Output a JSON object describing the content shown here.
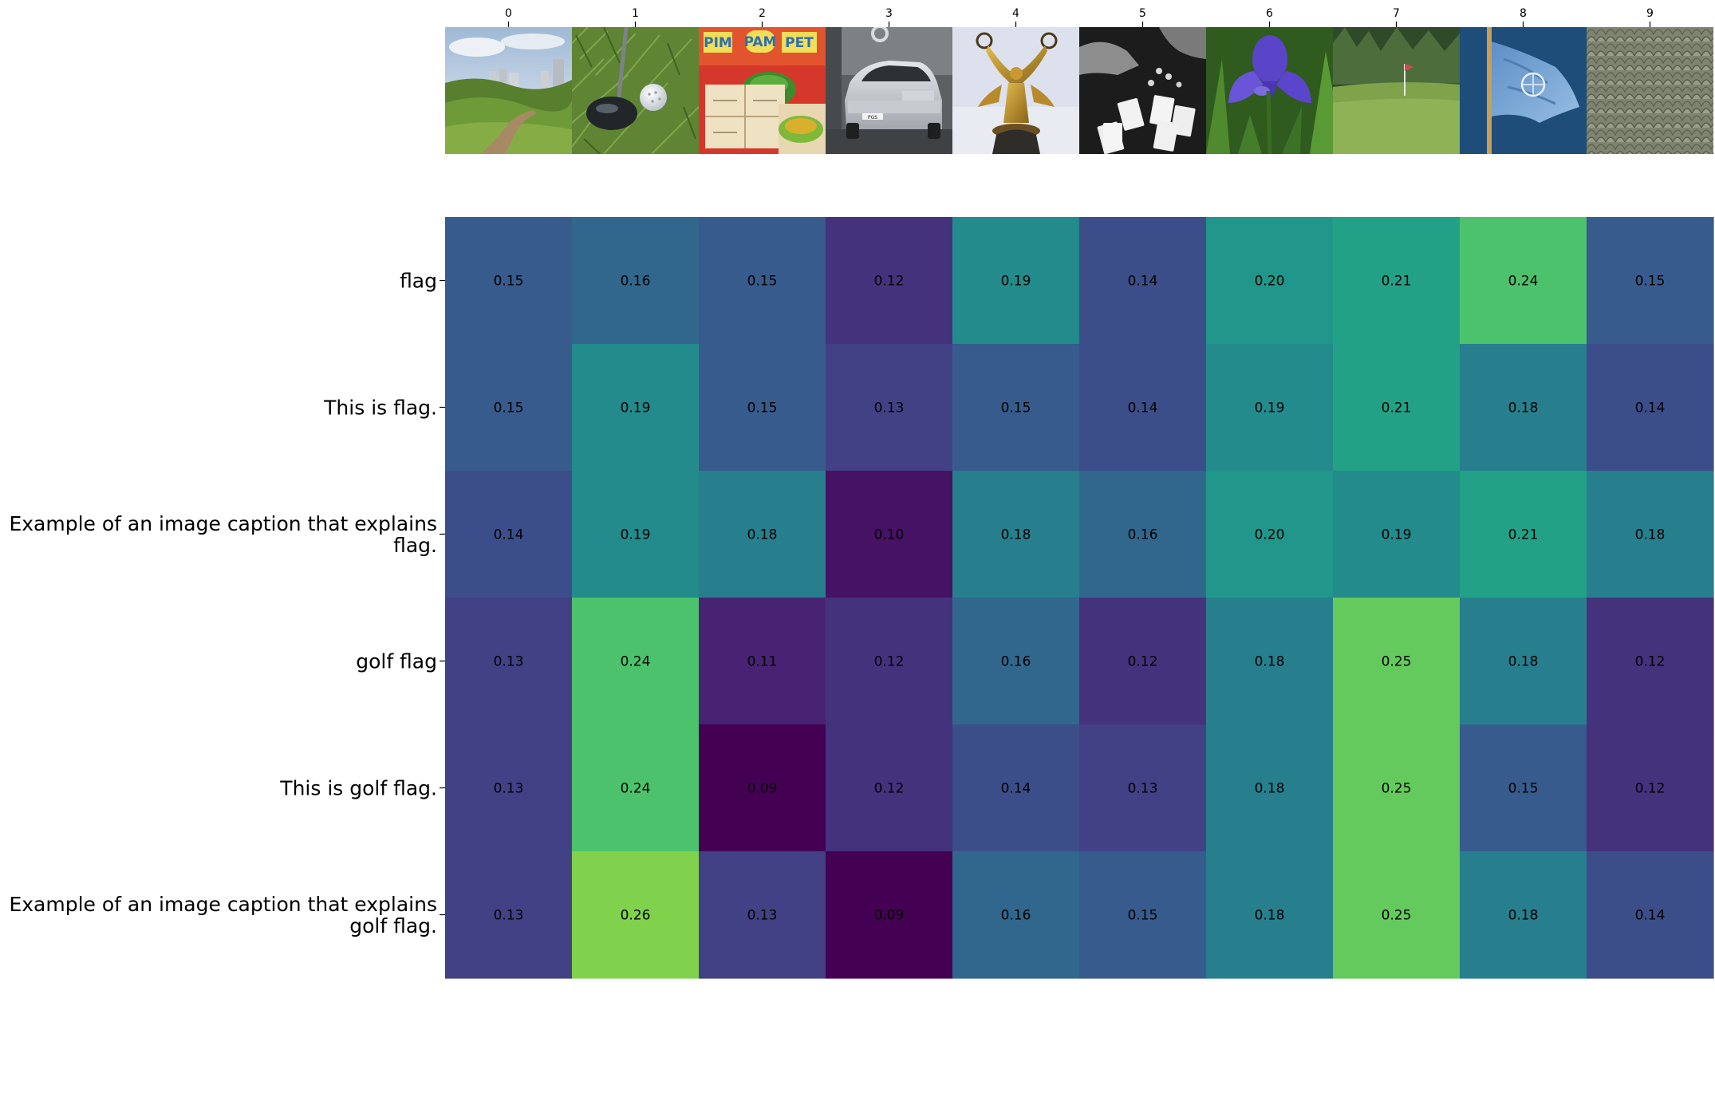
{
  "chart_data": {
    "type": "heatmap",
    "title": "",
    "xlabel": "",
    "ylabel": "",
    "x_tick_labels": [
      "0",
      "1",
      "2",
      "3",
      "4",
      "5",
      "6",
      "7",
      "8",
      "9"
    ],
    "image_thumbnails": [
      "landscape-with-path-and-city-buildings",
      "golf-driver-and-golf-ball-on-grass",
      "pim-pam-pet-board-game",
      "silver-hatchback-car",
      "golden-winged-statue",
      "hands-with-playing-cards-black-and-white",
      "purple-iris-flower",
      "golf-green-with-flag",
      "light-blue-flag-on-pole",
      "stone-shingle-roof"
    ],
    "rows": [
      [
        "flag"
      ],
      [
        "This is flag."
      ],
      [
        "Example of an image caption that explains",
        "flag."
      ],
      [
        "golf flag"
      ],
      [
        "This is golf flag."
      ],
      [
        "Example of an image caption that explains",
        "golf flag."
      ]
    ],
    "values": [
      [
        "0.15",
        "0.16",
        "0.15",
        "0.12",
        "0.19",
        "0.14",
        "0.20",
        "0.21",
        "0.24",
        "0.15"
      ],
      [
        "0.15",
        "0.19",
        "0.15",
        "0.13",
        "0.15",
        "0.14",
        "0.19",
        "0.21",
        "0.18",
        "0.14"
      ],
      [
        "0.14",
        "0.19",
        "0.18",
        "0.10",
        "0.18",
        "0.16",
        "0.20",
        "0.19",
        "0.21",
        "0.18"
      ],
      [
        "0.13",
        "0.24",
        "0.11",
        "0.12",
        "0.16",
        "0.12",
        "0.18",
        "0.25",
        "0.18",
        "0.12"
      ],
      [
        "0.13",
        "0.24",
        "0.09",
        "0.12",
        "0.14",
        "0.13",
        "0.18",
        "0.25",
        "0.15",
        "0.12"
      ],
      [
        "0.13",
        "0.26",
        "0.13",
        "0.09",
        "0.16",
        "0.15",
        "0.18",
        "0.25",
        "0.18",
        "0.14"
      ]
    ],
    "color_scale": "viridis",
    "vmin": 0.09,
    "vmax": 0.3,
    "grid": false,
    "legend": "none"
  }
}
